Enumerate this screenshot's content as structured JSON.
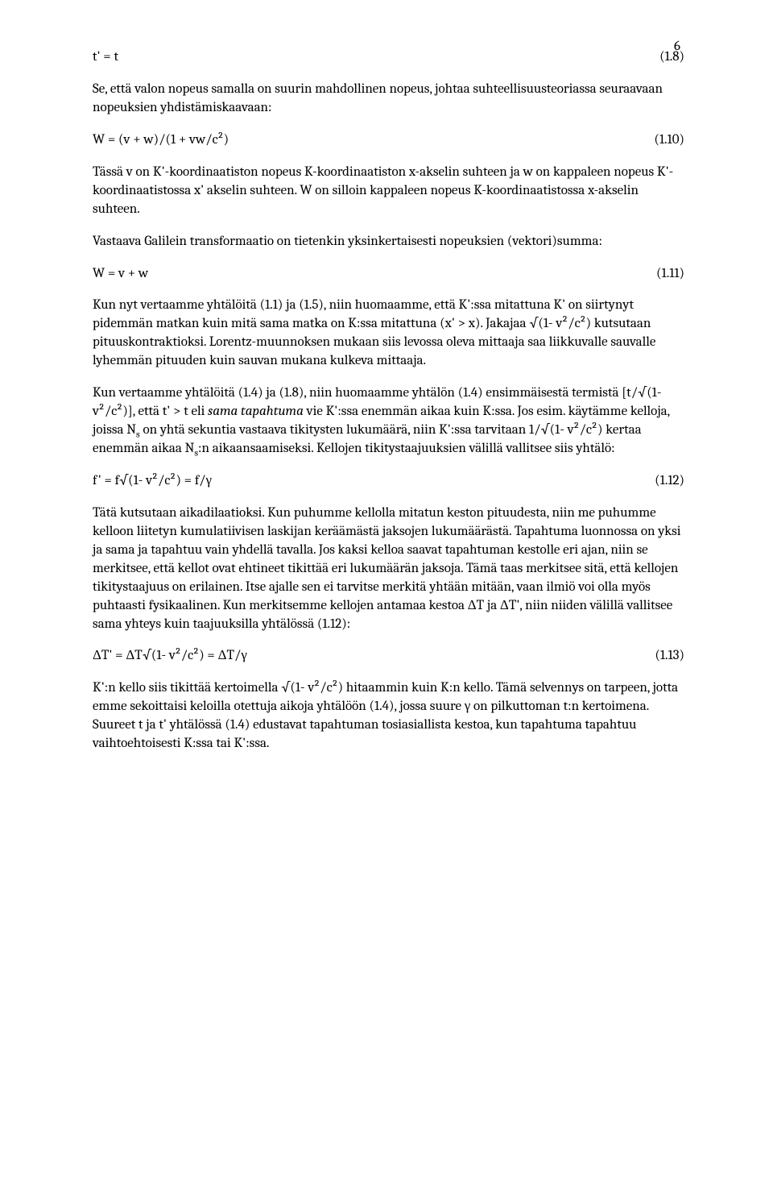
{
  "page_number": "6",
  "eq_1_8": {
    "expr": "t' = t",
    "num": "(1.8)"
  },
  "para_1": "Se, että valon nopeus samalla on suurin mahdollinen nopeus, johtaa suhteellisuusteoriassa seuraavaan nopeuksien yhdistämiskaavaan:",
  "eq_1_10": {
    "expr": "W = (v + w)/(1 + vw/c²)",
    "num": "(1.10)"
  },
  "para_2": "Tässä v on K'-koordinaatiston nopeus K-koordinaatiston x-akselin suhteen ja w on kappaleen nopeus K'-koordinaatistossa x' akselin suhteen. W on silloin kappaleen nopeus K-koordinaatistossa x-akselin suhteen.",
  "para_3": "Vastaava Galilein transformaatio on tietenkin yksinkertaisesti nopeuksien (vektori)summa:",
  "eq_1_11": {
    "expr": "W = v + w",
    "num": "(1.11)"
  },
  "para_4": "Kun nyt vertaamme yhtälöitä (1.1) ja (1.5), niin huomaamme, että K':ssa mitattuna K' on siirtynyt pidemmän matkan kuin mitä sama matka on K:ssa mitattuna (x' > x). Jakajaa √(1- v²/c²) kutsutaan pituuskontraktioksi. Lorentz-muunnoksen mukaan siis levossa oleva mittaaja saa liikkuvalle sauvalle lyhemmän pituuden kuin sauvan mukana kulkeva mittaaja.",
  "para_5_a": "Kun vertaamme yhtälöitä (1.4) ja (1.8), niin huomaamme yhtälön (1.4) ensimmäisestä termistä [t/√(1- v²/c²)], että t' > t eli ",
  "para_5_italic": "sama tapahtuma",
  "para_5_b": " vie K':ssa enemmän aikaa kuin K:ssa.  Jos esim. käytämme kelloja, joissa N",
  "para_5_c": " on yhtä sekuntia vastaava tikitysten lukumäärä, niin K':ssa tarvitaan  1/√(1- v²/c²) kertaa enemmän aikaa N",
  "para_5_d": ":n aikaansaamiseksi. Kellojen tikitystaajuuksien välillä vallitsee siis yhtälö:",
  "eq_1_12": {
    "expr": "f' = f√(1- v²/c²) = f/γ",
    "num": "(1.12)"
  },
  "para_6": "Tätä kutsutaan aikadilaatioksi. Kun puhumme kellolla mitatun keston pituudesta, niin me puhumme kelloon liitetyn kumulatiivisen laskijan keräämästä jaksojen lukumäärästä. Tapahtuma luonnossa on yksi ja sama ja tapahtuu vain yhdellä tavalla. Jos kaksi kelloa saavat tapahtuman kestolle eri ajan, niin se merkitsee, että kellot ovat ehtineet tikittää eri lukumäärän jaksoja. Tämä taas merkitsee sitä, että kellojen tikitystaajuus on erilainen. Itse ajalle sen ei tarvitse merkitä yhtään mitään, vaan ilmiö voi olla myös puhtaasti fysikaalinen. Kun merkitsemme kellojen antamaa kestoa ΔT ja ΔT', niin niiden välillä vallitsee sama yhteys kuin taajuuksilla yhtälössä (1.12):",
  "eq_1_13": {
    "expr": "ΔT' = ΔT√(1- v²/c²) = ΔT/γ",
    "num": "(1.13)"
  },
  "para_7": "K':n kello siis tikittää kertoimella √(1- v²/c²) hitaammin kuin K:n kello. Tämä selvennys on tarpeen, jotta emme sekoittaisi keloilla otettuja aikoja yhtälöön (1.4), jossa suure γ on pilkuttoman t:n kertoimena. Suureet t ja t' yhtälössä (1.4) edustavat tapahtuman tosiasiallista kestoa, kun tapahtuma tapahtuu vaihtoehtoisesti K:ssa tai K':ssa."
}
